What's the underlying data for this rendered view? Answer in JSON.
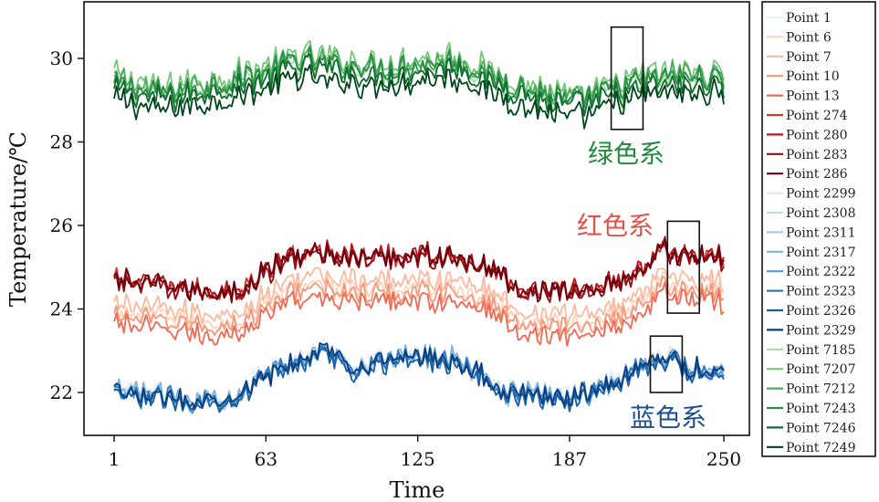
{
  "chart_data": {
    "type": "line",
    "xlabel": "Time",
    "ylabel": "Temperature/℃",
    "xlim": [
      1,
      250
    ],
    "ylim": [
      21,
      31.4
    ],
    "x_ticks": [
      1,
      63,
      125,
      187,
      250
    ],
    "y_ticks": [
      22,
      24,
      26,
      28,
      30
    ],
    "legend_position": "right-outside",
    "annotations": [
      {
        "text": "绿色系",
        "color": "#1f8a3c"
      },
      {
        "text": "红色系",
        "color": "#e0534a"
      },
      {
        "text": "蓝色系",
        "color": "#1f4e8c"
      }
    ],
    "highlight_boxes": [
      {
        "x": [
          204,
          217
        ],
        "y": [
          28.3,
          30.75
        ]
      },
      {
        "x": [
          227,
          240
        ],
        "y": [
          23.9,
          26.1
        ]
      },
      {
        "x": [
          220,
          233
        ],
        "y": [
          22,
          23.35
        ]
      }
    ],
    "series": [
      {
        "name": "Point 1",
        "color": "#e8f1fa",
        "group": "blue",
        "offset": 0.1
      },
      {
        "name": "Point 6",
        "color": "#fcd3bd",
        "group": "red",
        "offset": -0.75
      },
      {
        "name": "Point 7",
        "color": "#fbb99e",
        "group": "red",
        "offset": -0.55
      },
      {
        "name": "Point 10",
        "color": "#f6977c",
        "group": "red",
        "offset": -0.85
      },
      {
        "name": "Point 13",
        "color": "#ef6a55",
        "group": "red",
        "offset": -1.05
      },
      {
        "name": "Point 274",
        "color": "#d9342b",
        "group": "red",
        "offset": 0.0
      },
      {
        "name": "Point 280",
        "color": "#b8141b",
        "group": "red",
        "offset": 0.05
      },
      {
        "name": "Point 283",
        "color": "#940b13",
        "group": "red",
        "offset": -0.05
      },
      {
        "name": "Point 286",
        "color": "#67000d",
        "group": "red",
        "offset": 0.0
      },
      {
        "name": "Point 2299",
        "color": "#dbe8f5",
        "group": "blue",
        "offset": 0.05
      },
      {
        "name": "Point 2308",
        "color": "#c6dbef",
        "group": "blue",
        "offset": 0.0
      },
      {
        "name": "Point 2311",
        "color": "#a6cbe3",
        "group": "blue",
        "offset": -0.05
      },
      {
        "name": "Point 2317",
        "color": "#7db2d9",
        "group": "blue",
        "offset": 0.05
      },
      {
        "name": "Point 2322",
        "color": "#5298cc",
        "group": "blue",
        "offset": -0.05
      },
      {
        "name": "Point 2323",
        "color": "#2f7bbd",
        "group": "blue",
        "offset": 0.0
      },
      {
        "name": "Point 2326",
        "color": "#1a5fa6",
        "group": "blue",
        "offset": -0.1
      },
      {
        "name": "Point 2329",
        "color": "#0b3d7e",
        "group": "blue",
        "offset": 0.0
      },
      {
        "name": "Point 7185",
        "color": "#a9dca0",
        "group": "green",
        "offset": 0.0
      },
      {
        "name": "Point 7207",
        "color": "#78c67a",
        "group": "green",
        "offset": 0.2
      },
      {
        "name": "Point 7212",
        "color": "#49ae5c",
        "group": "green",
        "offset": 0.1
      },
      {
        "name": "Point 7243",
        "color": "#2b8f47",
        "group": "green",
        "offset": 0.05
      },
      {
        "name": "Point 7246",
        "color": "#0f6e30",
        "group": "green",
        "offset": -0.1
      },
      {
        "name": "Point 7249",
        "color": "#00441b",
        "group": "green",
        "offset": -0.35
      }
    ],
    "group_baselines": {
      "green": {
        "x": [
          1,
          20,
          40,
          63,
          75,
          90,
          110,
          125,
          140,
          155,
          170,
          187,
          200,
          215,
          230,
          250
        ],
        "y": [
          29.4,
          29.1,
          29.3,
          29.6,
          29.9,
          29.8,
          29.7,
          29.8,
          29.9,
          29.5,
          29.2,
          28.9,
          29.1,
          29.4,
          29.5,
          29.5
        ]
      },
      "red": {
        "x": [
          1,
          20,
          40,
          55,
          63,
          75,
          90,
          105,
          125,
          140,
          155,
          165,
          187,
          200,
          215,
          225,
          235,
          250
        ],
        "y": [
          24.7,
          24.55,
          24.4,
          24.5,
          24.9,
          25.3,
          25.3,
          25.2,
          25.3,
          25.2,
          25.0,
          24.5,
          24.4,
          24.5,
          24.9,
          25.4,
          25.3,
          25.2
        ]
      },
      "blue": {
        "x": [
          1,
          20,
          40,
          50,
          63,
          75,
          88,
          100,
          115,
          125,
          140,
          155,
          160,
          187,
          200,
          215,
          225,
          235,
          250
        ],
        "y": [
          22.0,
          21.9,
          21.8,
          21.9,
          22.4,
          22.8,
          23.0,
          22.6,
          22.8,
          22.9,
          22.8,
          22.3,
          22.0,
          21.9,
          22.1,
          22.6,
          22.9,
          22.6,
          22.5
        ]
      }
    },
    "noise_amplitude": {
      "green": 0.28,
      "red": 0.22,
      "blue": 0.2
    },
    "series_length": 250
  }
}
